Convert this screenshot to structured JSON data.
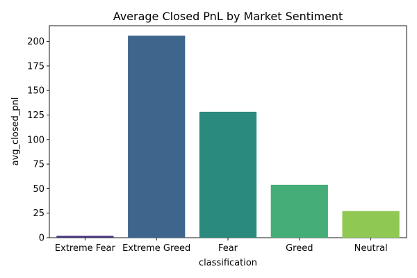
{
  "chart_data": {
    "type": "bar",
    "title": "Average Closed PnL by Market Sentiment",
    "xlabel": "classification",
    "ylabel": "avg_closed_pnl",
    "categories": [
      "Extreme Fear",
      "Extreme Greed",
      "Fear",
      "Greed",
      "Neutral"
    ],
    "values": [
      1.9,
      205.8,
      128.3,
      53.9,
      27.1
    ],
    "colors": [
      "#46337e",
      "#3e658c",
      "#2a8a7e",
      "#45ad77",
      "#8fc953"
    ],
    "ylim": [
      0,
      216
    ],
    "yticks": [
      0,
      25,
      50,
      75,
      100,
      125,
      150,
      175,
      200
    ],
    "grid": false,
    "legend": "none"
  }
}
